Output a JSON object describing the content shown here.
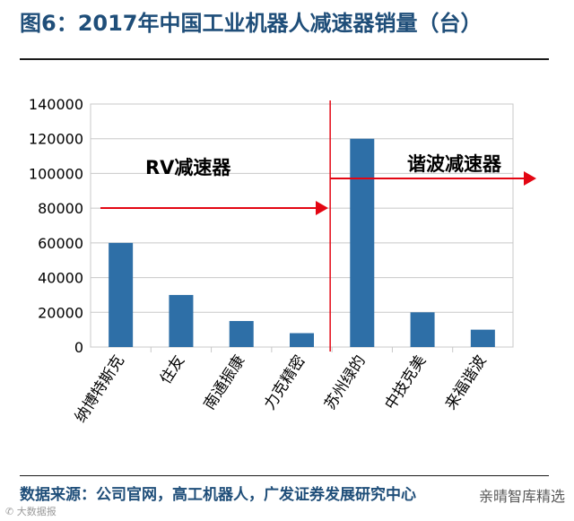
{
  "header": {
    "title": "图6：2017年中国工业机器人减速器销量（台）"
  },
  "footer": {
    "source": "数据来源：公司官网，高工机器人，广发证券发展研究中心"
  },
  "watermarks": {
    "left": "✆ 大数据报",
    "right": "亲晴智库精选"
  },
  "colors": {
    "bar": "#2e6fa7",
    "arrow": "#e30613",
    "title": "#1f4e79"
  },
  "chart_data": {
    "type": "bar",
    "categories": [
      "纳博特斯克",
      "住友",
      "南通振康",
      "力克精密",
      "苏州绿的",
      "中技克美",
      "来福谐波"
    ],
    "values": [
      60000,
      30000,
      15000,
      8000,
      120000,
      20000,
      10000
    ],
    "yticks": [
      0,
      20000,
      40000,
      60000,
      80000,
      100000,
      120000,
      140000
    ],
    "ylim": [
      0,
      140000
    ],
    "grid": true,
    "annotations": [
      {
        "text": "RV减速器",
        "arrow": "right"
      },
      {
        "text": "谐波减速器",
        "arrow": "right"
      }
    ]
  }
}
